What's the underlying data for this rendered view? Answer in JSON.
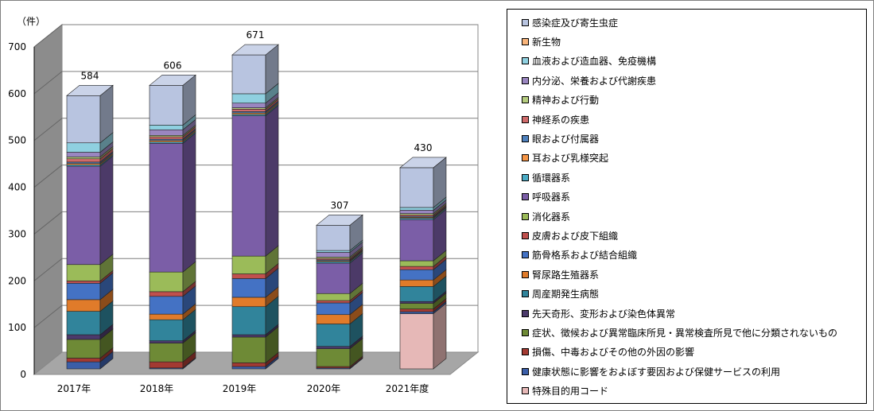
{
  "chart_data": {
    "type": "bar",
    "stacked": true,
    "unit_label": "（件）",
    "categories": [
      "2017年",
      "2018年",
      "2019年",
      "2020年",
      "2021年度"
    ],
    "totals": [
      "584",
      "606",
      "671",
      "307",
      "430"
    ],
    "ylim": [
      0,
      700
    ],
    "yticks": [
      "0",
      "100",
      "200",
      "300",
      "400",
      "500",
      "600",
      "700"
    ],
    "grid": true,
    "legend_position": "right",
    "series": [
      {
        "name": "特殊目的用コード",
        "color": "#e6b8b7",
        "values": [
          0,
          0,
          0,
          0,
          118
        ]
      },
      {
        "name": "健康状態に影響をおよぼす要因および保健サービスの利用",
        "color": "#3b5ea8",
        "values": [
          15,
          2,
          5,
          2,
          4
        ]
      },
      {
        "name": "損傷、中毒およびその他の外因の影響",
        "color": "#a33a32",
        "values": [
          8,
          13,
          8,
          3,
          6
        ]
      },
      {
        "name": "症状、徴候および異常臨床所見・異常検査所見で他に分類されないもの",
        "color": "#6e8a36",
        "values": [
          40,
          40,
          55,
          38,
          12
        ]
      },
      {
        "name": "先天奇形、変形および染色体異常",
        "color": "#4b3a6b",
        "values": [
          10,
          5,
          5,
          5,
          4
        ]
      },
      {
        "name": "周産期発生病態",
        "color": "#31849b",
        "values": [
          50,
          45,
          60,
          48,
          32
        ]
      },
      {
        "name": "腎尿路生殖器系",
        "color": "#e07b2a",
        "values": [
          25,
          12,
          20,
          20,
          14
        ]
      },
      {
        "name": "筋骨格系および結合組織",
        "color": "#4472c4",
        "values": [
          35,
          38,
          40,
          25,
          22
        ]
      },
      {
        "name": "皮膚および皮下組織",
        "color": "#c0504d",
        "values": [
          5,
          10,
          10,
          5,
          7
        ]
      },
      {
        "name": "消化器系",
        "color": "#9bbb59",
        "values": [
          35,
          42,
          38,
          15,
          12
        ]
      },
      {
        "name": "呼吸器系",
        "color": "#7b5ea7",
        "values": [
          210,
          275,
          300,
          65,
          88
        ]
      },
      {
        "name": "循環器系",
        "color": "#4bacc6",
        "values": [
          3,
          3,
          3,
          3,
          3
        ]
      },
      {
        "name": "耳および乳様突起",
        "color": "#f79646",
        "values": [
          3,
          3,
          3,
          2,
          2
        ]
      },
      {
        "name": "眼および付属器",
        "color": "#4f81bd",
        "values": [
          3,
          3,
          3,
          2,
          2
        ]
      },
      {
        "name": "神経系の疾患",
        "color": "#d06b6b",
        "values": [
          7,
          5,
          5,
          3,
          3
        ]
      },
      {
        "name": "精神および行動",
        "color": "#b5cc7f",
        "values": [
          4,
          3,
          3,
          3,
          3
        ]
      },
      {
        "name": "内分泌、栄養および代謝疾患",
        "color": "#9a86c0",
        "values": [
          10,
          12,
          10,
          10,
          7
        ]
      },
      {
        "name": "血液および造血器、免疫機構",
        "color": "#8fd0e0",
        "values": [
          20,
          10,
          20,
          4,
          6
        ]
      },
      {
        "name": "新生物",
        "color": "#f8b47a",
        "values": [
          0,
          0,
          0,
          0,
          0
        ]
      },
      {
        "name": "感染症及び寄生虫症",
        "color": "#b8c4e0",
        "values": [
          101,
          85,
          83,
          54,
          85
        ]
      }
    ]
  }
}
